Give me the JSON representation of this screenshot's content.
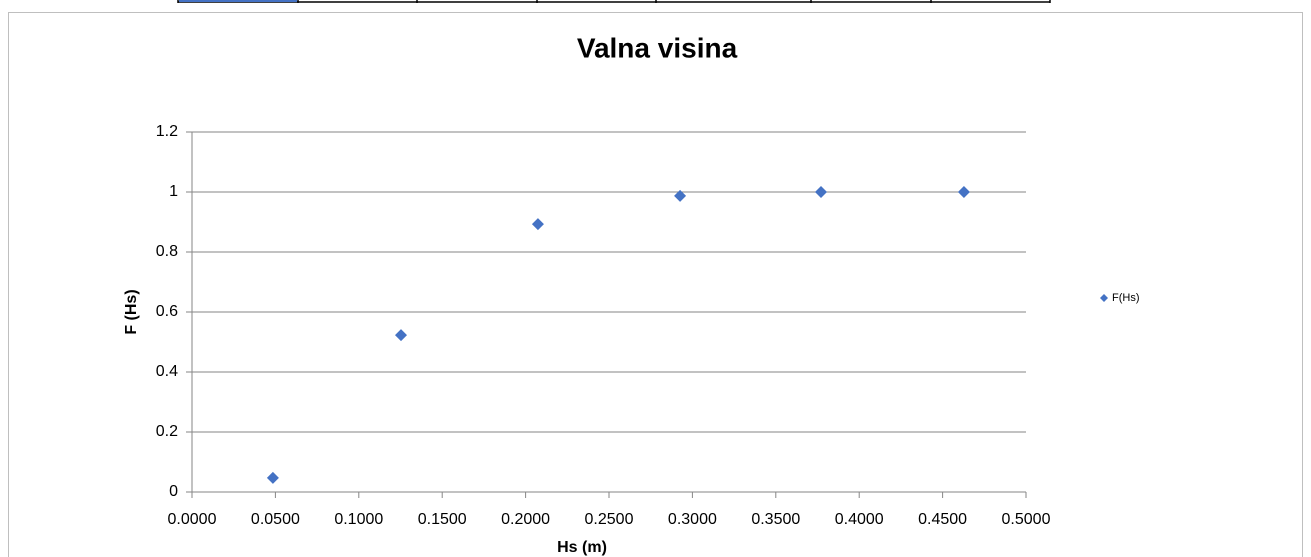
{
  "chart_data": {
    "type": "scatter",
    "title": "Valna visina",
    "x_label": "Hs (m)",
    "y_label": "F (Hs)",
    "series": [
      {
        "name": "F(Hs)",
        "color": "#4472c4",
        "x": [
          0.0485,
          0.1253,
          0.2074,
          0.2926,
          0.3771,
          0.4628
        ],
        "values": [
          0.047,
          0.523,
          0.893,
          0.987,
          1.0,
          1.0
        ]
      }
    ],
    "xlim": [
      0,
      0.5
    ],
    "xticks": [
      {
        "value": 0,
        "label": "0.0000"
      },
      {
        "value": 0.05,
        "label": "0.0500"
      },
      {
        "value": 0.1,
        "label": "0.1000"
      },
      {
        "value": 0.15,
        "label": "0.1500"
      },
      {
        "value": 0.2,
        "label": "0.2000"
      },
      {
        "value": 0.25,
        "label": "0.2500"
      },
      {
        "value": 0.3,
        "label": "0.3000"
      },
      {
        "value": 0.35,
        "label": "0.3500"
      },
      {
        "value": 0.4,
        "label": "0.4000"
      },
      {
        "value": 0.45,
        "label": "0.4500"
      },
      {
        "value": 0.5,
        "label": "0.5000"
      }
    ],
    "ylim": [
      0,
      1.2
    ],
    "yticks": [
      0,
      0.2,
      0.4,
      0.6,
      0.8,
      1,
      1.2
    ],
    "grid": true,
    "legend": "right"
  }
}
